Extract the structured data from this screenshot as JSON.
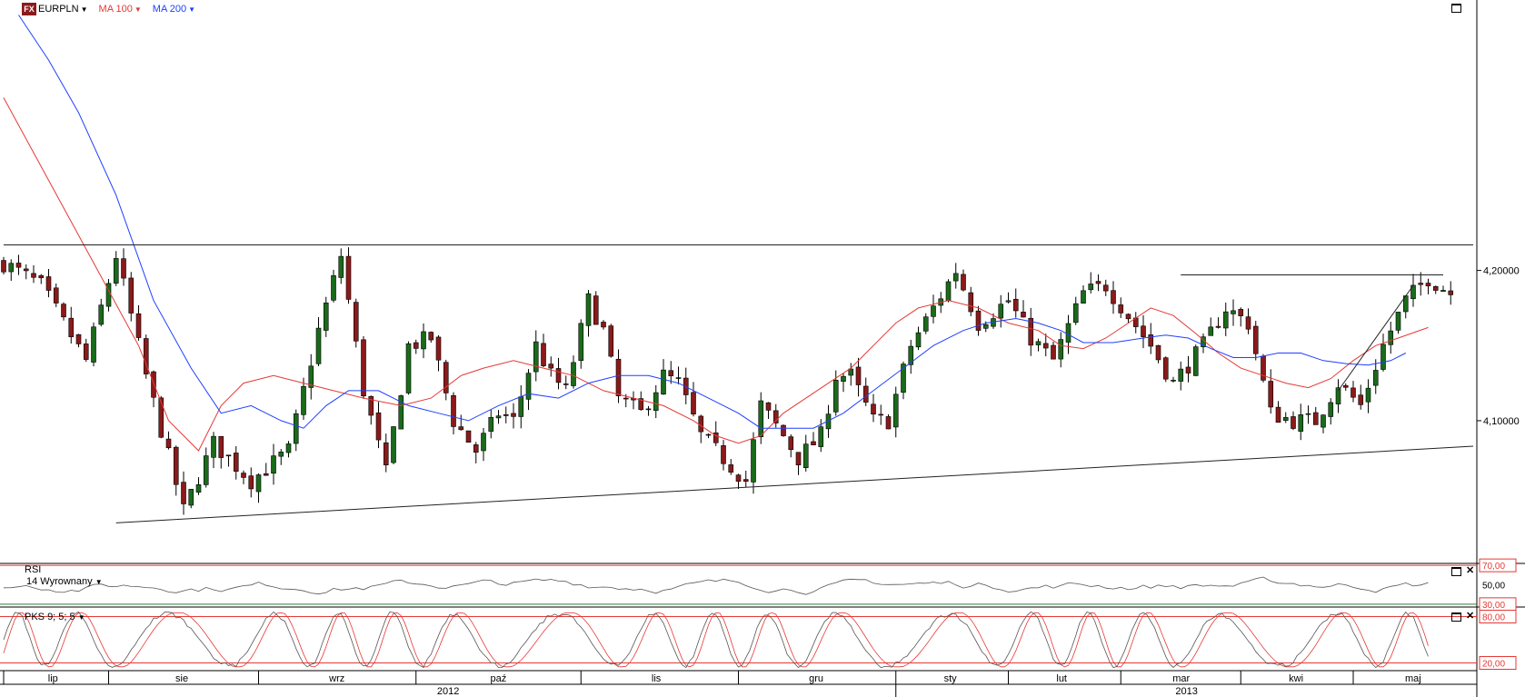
{
  "header": {
    "logo": "FX",
    "symbol": "EURPLN",
    "indicators": [
      {
        "label": "MA 100",
        "color": "#e53935"
      },
      {
        "label": "MA 200",
        "color": "#1e40ff"
      }
    ]
  },
  "panels": {
    "rsi": {
      "title": "RSI",
      "params": "14 Wyrownany"
    },
    "pks": {
      "title": "PKS 9; 5; 5"
    }
  },
  "colors": {
    "bull_candle": "#1a6b1a",
    "bear_candle": "#8b1a1a",
    "ma100": "#e53935",
    "ma200": "#1e40ff",
    "level_red": "#e53935",
    "level_green": "#2e7d32",
    "oscillator": "#555555"
  },
  "chart_data": [
    {
      "type": "candlestick",
      "symbol": "EURPLN",
      "ylim": [
        4.005,
        4.38
      ],
      "y_ticks": [
        "4,10000",
        "4,20000"
      ],
      "x_months": [
        "lip",
        "sie",
        "wrz",
        "paź",
        "lis",
        "gru",
        "sty",
        "lut",
        "mar",
        "kwi",
        "maj"
      ],
      "x_years": [
        "2012",
        "2013"
      ],
      "close_path": [
        [
          0,
          4.205
        ],
        [
          5,
          4.19
        ],
        [
          11,
          4.14
        ],
        [
          15,
          4.21
        ],
        [
          19,
          4.13
        ],
        [
          24,
          4.04
        ],
        [
          28,
          4.085
        ],
        [
          33,
          4.06
        ],
        [
          38,
          4.08
        ],
        [
          42,
          4.16
        ],
        [
          45,
          4.21
        ],
        [
          48,
          4.12
        ],
        [
          51,
          4.065
        ],
        [
          54,
          4.15
        ],
        [
          57,
          4.155
        ],
        [
          60,
          4.1
        ],
        [
          63,
          4.08
        ],
        [
          66,
          4.105
        ],
        [
          68,
          4.1
        ],
        [
          71,
          4.15
        ],
        [
          73,
          4.13
        ],
        [
          75,
          4.12
        ],
        [
          78,
          4.18
        ],
        [
          80,
          4.16
        ],
        [
          82,
          4.115
        ],
        [
          85,
          4.105
        ],
        [
          88,
          4.13
        ],
        [
          90,
          4.125
        ],
        [
          93,
          4.09
        ],
        [
          96,
          4.075
        ],
        [
          99,
          4.06
        ],
        [
          101,
          4.11
        ],
        [
          104,
          4.09
        ],
        [
          106,
          4.075
        ],
        [
          109,
          4.09
        ],
        [
          111,
          4.13
        ],
        [
          113,
          4.13
        ],
        [
          116,
          4.1
        ],
        [
          118,
          4.1
        ],
        [
          121,
          4.15
        ],
        [
          124,
          4.175
        ],
        [
          127,
          4.2
        ],
        [
          130,
          4.165
        ],
        [
          134,
          4.18
        ],
        [
          137,
          4.155
        ],
        [
          140,
          4.14
        ],
        [
          144,
          4.185
        ],
        [
          147,
          4.19
        ],
        [
          150,
          4.17
        ],
        [
          153,
          4.15
        ],
        [
          156,
          4.125
        ],
        [
          160,
          4.15
        ],
        [
          163,
          4.175
        ],
        [
          166,
          4.165
        ],
        [
          169,
          4.105
        ],
        [
          172,
          4.1
        ],
        [
          175,
          4.1
        ],
        [
          178,
          4.125
        ],
        [
          181,
          4.11
        ],
        [
          184,
          4.15
        ],
        [
          187,
          4.18
        ],
        [
          190,
          4.195
        ],
        [
          193,
          4.185
        ]
      ],
      "ma100_path": [
        [
          0,
          4.315
        ],
        [
          6,
          4.26
        ],
        [
          12,
          4.205
        ],
        [
          18,
          4.15
        ],
        [
          22,
          4.1
        ],
        [
          26,
          4.08
        ],
        [
          29,
          4.11
        ],
        [
          32,
          4.125
        ],
        [
          36,
          4.13
        ],
        [
          40,
          4.125
        ],
        [
          44,
          4.12
        ],
        [
          48,
          4.115
        ],
        [
          53,
          4.11
        ],
        [
          57,
          4.115
        ],
        [
          61,
          4.13
        ],
        [
          64,
          4.135
        ],
        [
          68,
          4.14
        ],
        [
          72,
          4.135
        ],
        [
          76,
          4.13
        ],
        [
          80,
          4.12
        ],
        [
          84,
          4.115
        ],
        [
          88,
          4.11
        ],
        [
          92,
          4.1
        ],
        [
          95,
          4.09
        ],
        [
          98,
          4.085
        ],
        [
          101,
          4.09
        ],
        [
          104,
          4.105
        ],
        [
          107,
          4.115
        ],
        [
          110,
          4.125
        ],
        [
          113,
          4.135
        ],
        [
          116,
          4.15
        ],
        [
          119,
          4.165
        ],
        [
          122,
          4.175
        ],
        [
          126,
          4.18
        ],
        [
          130,
          4.175
        ],
        [
          134,
          4.165
        ],
        [
          138,
          4.16
        ],
        [
          141,
          4.15
        ],
        [
          144,
          4.148
        ],
        [
          147,
          4.155
        ],
        [
          150,
          4.165
        ],
        [
          153,
          4.175
        ],
        [
          156,
          4.17
        ],
        [
          159,
          4.158
        ],
        [
          162,
          4.145
        ],
        [
          165,
          4.135
        ],
        [
          168,
          4.13
        ],
        [
          171,
          4.125
        ],
        [
          174,
          4.122
        ],
        [
          177,
          4.128
        ],
        [
          180,
          4.14
        ],
        [
          183,
          4.15
        ],
        [
          186,
          4.155
        ],
        [
          190,
          4.162
        ]
      ],
      "ma200_path": [
        [
          2,
          4.37
        ],
        [
          6,
          4.34
        ],
        [
          10,
          4.305
        ],
        [
          15,
          4.25
        ],
        [
          20,
          4.18
        ],
        [
          25,
          4.135
        ],
        [
          29,
          4.105
        ],
        [
          33,
          4.11
        ],
        [
          37,
          4.1
        ],
        [
          40,
          4.095
        ],
        [
          43,
          4.11
        ],
        [
          46,
          4.12
        ],
        [
          50,
          4.12
        ],
        [
          54,
          4.11
        ],
        [
          58,
          4.105
        ],
        [
          62,
          4.1
        ],
        [
          66,
          4.11
        ],
        [
          70,
          4.118
        ],
        [
          74,
          4.115
        ],
        [
          78,
          4.125
        ],
        [
          82,
          4.13
        ],
        [
          86,
          4.13
        ],
        [
          90,
          4.125
        ],
        [
          94,
          4.115
        ],
        [
          98,
          4.105
        ],
        [
          101,
          4.095
        ],
        [
          104,
          4.095
        ],
        [
          108,
          4.095
        ],
        [
          112,
          4.105
        ],
        [
          116,
          4.12
        ],
        [
          120,
          4.135
        ],
        [
          124,
          4.15
        ],
        [
          128,
          4.16
        ],
        [
          131,
          4.165
        ],
        [
          135,
          4.168
        ],
        [
          138,
          4.165
        ],
        [
          141,
          4.16
        ],
        [
          144,
          4.152
        ],
        [
          148,
          4.152
        ],
        [
          152,
          4.155
        ],
        [
          155,
          4.157
        ],
        [
          158,
          4.155
        ],
        [
          161,
          4.148
        ],
        [
          164,
          4.142
        ],
        [
          167,
          4.142
        ],
        [
          170,
          4.145
        ],
        [
          173,
          4.145
        ],
        [
          176,
          4.14
        ],
        [
          179,
          4.138
        ],
        [
          182,
          4.137
        ],
        [
          185,
          4.14
        ],
        [
          187,
          4.145
        ]
      ],
      "trendlines": [
        {
          "x1": 0,
          "y1": 4.217,
          "x2": 196,
          "y2": 4.217
        },
        {
          "x1": 15,
          "y1": 4.032,
          "x2": 196,
          "y2": 4.083
        },
        {
          "x1": 157,
          "y1": 4.197,
          "x2": 192,
          "y2": 4.197
        },
        {
          "x1": 178,
          "y1": 4.12,
          "x2": 188,
          "y2": 4.19
        }
      ]
    },
    {
      "type": "line",
      "title": "RSI",
      "params": "14 Wyrownany",
      "ylim": [
        28,
        72
      ],
      "levels": [
        "70,00",
        "50,00",
        "30,00"
      ],
      "level_values": [
        70,
        50,
        30
      ]
    },
    {
      "type": "line",
      "title": "PKS 9; 5; 5",
      "ylim": [
        10,
        90
      ],
      "levels": [
        "80,00",
        "20,00"
      ],
      "level_values": [
        80,
        20
      ]
    }
  ]
}
